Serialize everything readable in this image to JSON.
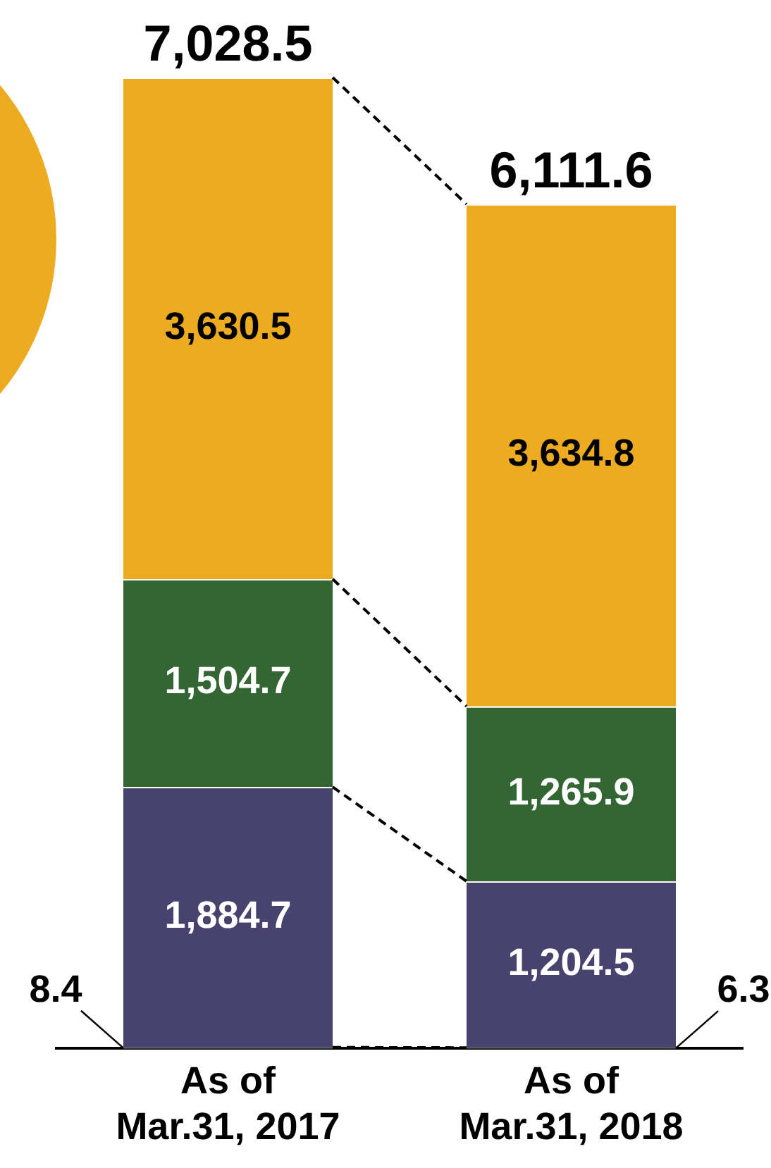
{
  "chart_data": {
    "type": "bar",
    "stacked": true,
    "categories": [
      "As of Mar.31, 2017",
      "As of Mar.31, 2018"
    ],
    "series": [
      {
        "color": "#8fa9c8",
        "values": [
          8.4,
          6.3
        ],
        "value_labels": [
          "8.4",
          "6.3"
        ]
      },
      {
        "color": "#48426e",
        "values": [
          1884.7,
          1204.5
        ],
        "value_labels": [
          "1,884.7",
          "1,204.5"
        ]
      },
      {
        "color": "#336633",
        "values": [
          1504.7,
          1265.9
        ],
        "value_labels": [
          "1,504.7",
          "1,265.9"
        ]
      },
      {
        "color": "#edac20",
        "values": [
          3630.5,
          3634.8
        ],
        "value_labels": [
          "3,630.5",
          "3,634.8"
        ]
      }
    ],
    "totals": [
      "7,028.5",
      "6,111.6"
    ],
    "grid": false,
    "legend": false
  }
}
